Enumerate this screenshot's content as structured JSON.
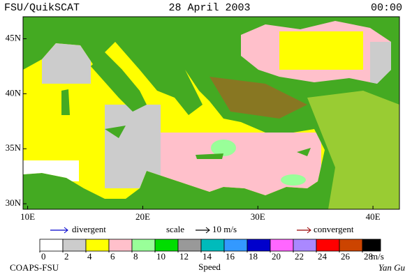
{
  "header": {
    "left": "FSU/QuikSCAT",
    "center": "28 April 2003",
    "right": "00:00"
  },
  "map": {
    "xlim": [
      9.6,
      42.3
    ],
    "ylim": [
      29.5,
      47
    ],
    "xticks": [
      {
        "value": 10,
        "label": "10E"
      },
      {
        "value": 20,
        "label": "20E"
      },
      {
        "value": 30,
        "label": "30E"
      },
      {
        "value": 40,
        "label": "40E"
      }
    ],
    "yticks": [
      {
        "value": 30,
        "label": "30N"
      },
      {
        "value": 35,
        "label": "35N"
      },
      {
        "value": 40,
        "label": "40N"
      },
      {
        "value": 45,
        "label": "45N"
      }
    ]
  },
  "legend": {
    "divergent": "divergent",
    "divergent_color": "#0000cc",
    "scale": "scale",
    "scale_value": "10 m/s",
    "convergent": "convergent",
    "convergent_color": "#990000"
  },
  "colorbar": {
    "ticks": [
      0,
      2,
      4,
      6,
      8,
      10,
      12,
      14,
      16,
      18,
      20,
      22,
      24,
      26,
      28
    ],
    "unit": "m/s",
    "title": "Speed",
    "colors": [
      "#ffffff",
      "#cccccc",
      "#ffff00",
      "#ffc0cb",
      "#99ff99",
      "#00dd00",
      "#999999",
      "#00bbbb",
      "#3399ff",
      "#0000cc",
      "#ff66ff",
      "#aa88ff",
      "#ff0000",
      "#cc4400",
      "#000000"
    ]
  },
  "footer": {
    "left": "COAPS-FSU",
    "right": "Yan Gu"
  }
}
